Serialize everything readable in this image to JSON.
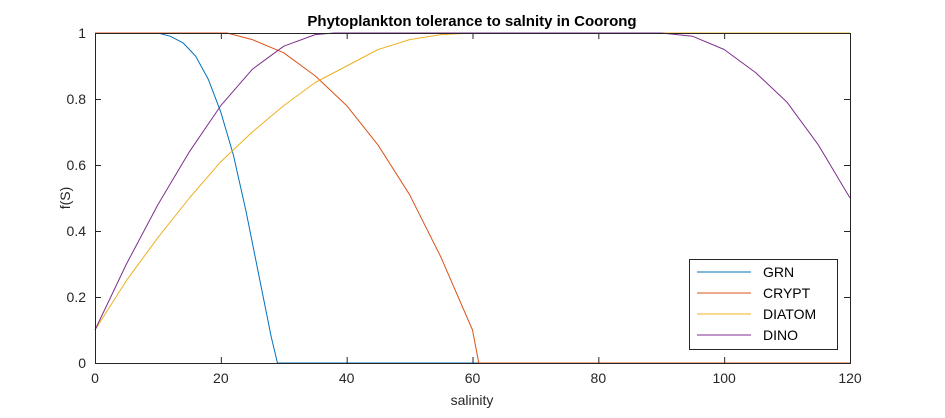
{
  "chart_data": {
    "type": "line",
    "title": "Phytoplankton tolerance to salnity in Coorong",
    "xlabel": "salinity",
    "ylabel": "f(S)",
    "xlim": [
      0,
      120
    ],
    "ylim": [
      0,
      1
    ],
    "x_ticks": [
      0,
      20,
      40,
      60,
      80,
      100,
      120
    ],
    "y_ticks": [
      0,
      0.2,
      0.4,
      0.6,
      0.8,
      1
    ],
    "x_tick_labels": [
      "0",
      "20",
      "40",
      "60",
      "80",
      "100",
      "120"
    ],
    "y_tick_labels": [
      "0",
      "0.2",
      "0.4",
      "0.6",
      "0.8",
      "1"
    ],
    "grid": false,
    "box": true,
    "legend_position": "bottom-right",
    "series": [
      {
        "name": "GRN",
        "color": "#0072BD",
        "x": [
          0,
          10,
          12,
          14,
          16,
          18,
          20,
          22,
          24,
          26,
          28,
          29,
          60,
          120
        ],
        "y": [
          1,
          1,
          0.99,
          0.97,
          0.93,
          0.86,
          0.76,
          0.63,
          0.46,
          0.27,
          0.08,
          0,
          0,
          0
        ]
      },
      {
        "name": "CRYPT",
        "color": "#D95319",
        "x": [
          0,
          21,
          25,
          30,
          35,
          40,
          45,
          50,
          55,
          60,
          60.5,
          61,
          120
        ],
        "y": [
          1,
          1,
          0.98,
          0.94,
          0.87,
          0.78,
          0.66,
          0.51,
          0.32,
          0.1,
          0.05,
          0,
          0
        ]
      },
      {
        "name": "DIATOM",
        "color": "#EDB120",
        "x": [
          0,
          5,
          10,
          15,
          20,
          25,
          30,
          35,
          40,
          45,
          50,
          55,
          60,
          120
        ],
        "y": [
          0.1,
          0.25,
          0.38,
          0.5,
          0.61,
          0.7,
          0.78,
          0.85,
          0.9,
          0.95,
          0.98,
          0.995,
          1,
          1
        ]
      },
      {
        "name": "DINO",
        "color": "#7E2F8E",
        "x": [
          0,
          5,
          10,
          15,
          20,
          25,
          30,
          35,
          38,
          40,
          90,
          95,
          100,
          105,
          110,
          115,
          120
        ],
        "y": [
          0.1,
          0.3,
          0.48,
          0.64,
          0.78,
          0.89,
          0.96,
          0.995,
          1,
          1,
          1,
          0.99,
          0.95,
          0.88,
          0.79,
          0.66,
          0.5
        ]
      }
    ]
  }
}
